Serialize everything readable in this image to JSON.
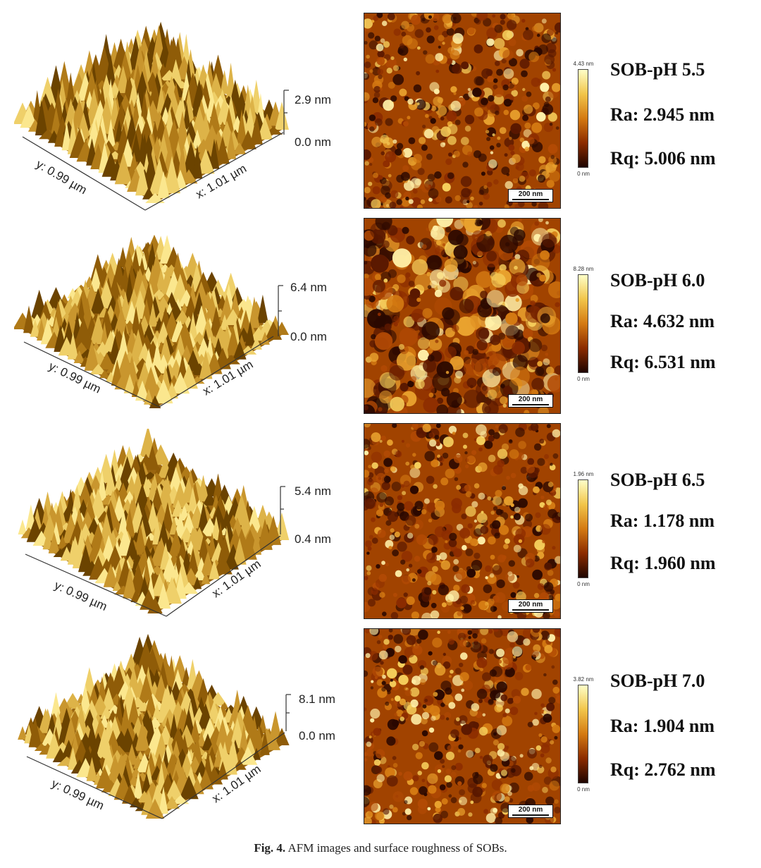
{
  "panels": [
    {
      "z_max": "2.9 nm",
      "z_min": "0.0 nm",
      "y_axis": "y: 0.99 µm",
      "x_axis": "x: 1.01 µm",
      "cbar_max": "4.43 nm",
      "cbar_min": "0 nm",
      "scale": "200 nm",
      "sample": "SOB-pH 5.5",
      "ra": "Ra: 2.945 nm",
      "rq": "Rq: 5.006 nm"
    },
    {
      "z_max": "6.4 nm",
      "z_min": "0.0 nm",
      "y_axis": "y: 0.99 µm",
      "x_axis": "x: 1.01 µm",
      "cbar_max": "8.28 nm",
      "cbar_min": "0 nm",
      "scale": "200 nm",
      "sample": "SOB-pH 6.0",
      "ra": "Ra: 4.632 nm",
      "rq": "Rq: 6.531 nm"
    },
    {
      "z_max": "5.4 nm",
      "z_min": "0.4 nm",
      "y_axis": "y: 0.99 µm",
      "x_axis": "x: 1.01 µm",
      "cbar_max": "1.96 nm",
      "cbar_min": "0 nm",
      "scale": "200 nm",
      "sample": "SOB-pH 6.5",
      "ra": "Ra: 1.178 nm",
      "rq": "Rq: 1.960 nm"
    },
    {
      "z_max": "8.1 nm",
      "z_min": "0.0 nm",
      "y_axis": "y: 0.99 µm",
      "x_axis": "x: 1.01 µm",
      "cbar_max": "3.82 nm",
      "cbar_min": "0 nm",
      "scale": "200 nm",
      "sample": "SOB-pH 7.0",
      "ra": "Ra: 1.904 nm",
      "rq": "Rq: 2.762 nm"
    }
  ],
  "caption": {
    "label": "Fig. 4.",
    "text": "AFM images and surface roughness of SOBs."
  },
  "colors": {
    "afm_dark": "#1e0500",
    "afm_mid": "#c25a08",
    "afm_light": "#ffffc8"
  }
}
